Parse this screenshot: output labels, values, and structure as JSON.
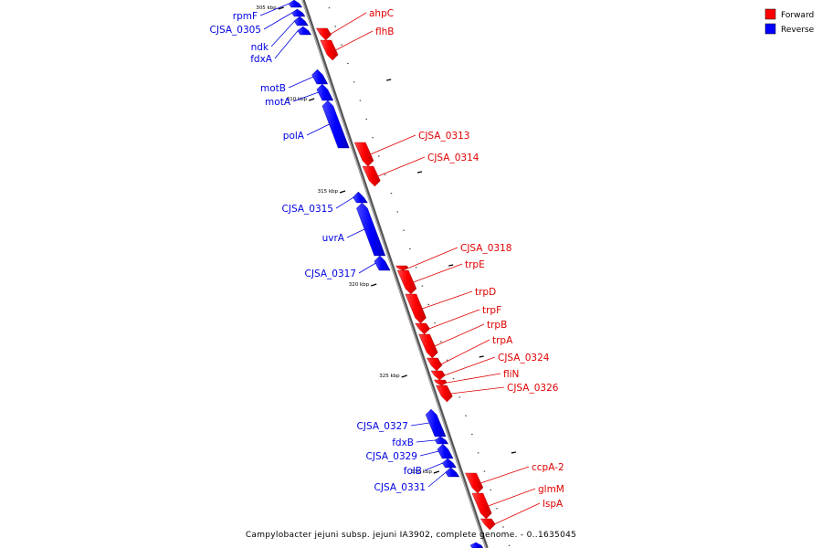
{
  "legend": {
    "forward_label": "Forward",
    "reverse_label": "Reverse",
    "forward_color": "#ff0000",
    "reverse_color": "#0000ff"
  },
  "caption": "Campylobacter jejuni subsp. jejuni IA3902, complete genome. - 0..1635045",
  "ticks": [
    "305 kbp",
    "310 kbp",
    "315 kbp",
    "320 kbp",
    "325 kbp",
    "330 kbp"
  ],
  "genes": {
    "rpmF": "rpmF",
    "CJSA_0305": "CJSA_0305",
    "ndk": "ndk",
    "fdxA": "fdxA",
    "ahpC": "ahpC",
    "flhB": "flhB",
    "motB": "motB",
    "motA": "motA",
    "polA": "polA",
    "CJSA_0313": "CJSA_0313",
    "CJSA_0314": "CJSA_0314",
    "CJSA_0315": "CJSA_0315",
    "uvrA": "uvrA",
    "CJSA_0317": "CJSA_0317",
    "CJSA_0318": "CJSA_0318",
    "trpE": "trpE",
    "trpD": "trpD",
    "trpF": "trpF",
    "trpB": "trpB",
    "trpA": "trpA",
    "CJSA_0324": "CJSA_0324",
    "fliN": "fliN",
    "CJSA_0326": "CJSA_0326",
    "CJSA_0327": "CJSA_0327",
    "fdxB": "fdxB",
    "CJSA_0329": "CJSA_0329",
    "folB": "folB",
    "CJSA_0331": "CJSA_0331",
    "ccpA-2": "ccpA-2",
    "glmM": "glmM",
    "lspA": "lspA"
  }
}
